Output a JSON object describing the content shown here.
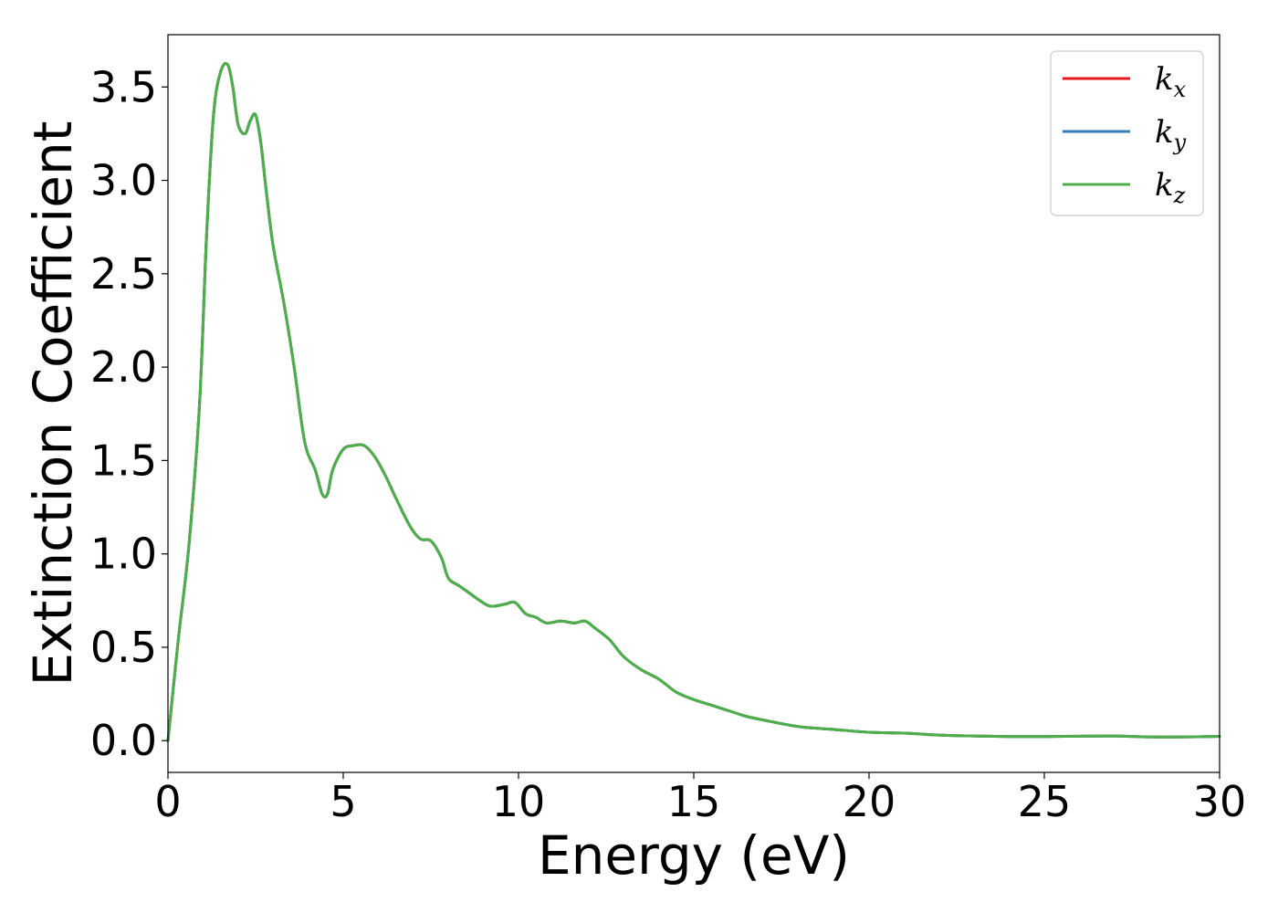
{
  "chart_data": {
    "type": "line",
    "title": "",
    "xlabel": "Energy (eV)",
    "ylabel": "Extinction Coefficient",
    "xlim": [
      0,
      30
    ],
    "ylim": [
      -0.17,
      3.78
    ],
    "x_ticks": [
      0,
      5,
      10,
      15,
      20,
      25,
      30
    ],
    "y_ticks": [
      0.0,
      0.5,
      1.0,
      1.5,
      2.0,
      2.5,
      3.0,
      3.5
    ],
    "x_tick_labels": [
      "0",
      "5",
      "10",
      "15",
      "20",
      "25",
      "30"
    ],
    "y_tick_labels": [
      "0.0",
      "0.5",
      "1.0",
      "1.5",
      "2.0",
      "2.5",
      "3.0",
      "3.5"
    ],
    "grid": false,
    "legend_position": "top-right",
    "legend": [
      {
        "symbol": "k",
        "subscript": "x",
        "color": "#e41a1c"
      },
      {
        "symbol": "k",
        "subscript": "y",
        "color": "#377eb8"
      },
      {
        "symbol": "k",
        "subscript": "z",
        "color": "#4daf4a"
      }
    ],
    "x": [
      0,
      0.3,
      0.6,
      0.9,
      1.1,
      1.3,
      1.5,
      1.7,
      1.85,
      2.0,
      2.2,
      2.35,
      2.5,
      2.65,
      2.8,
      3.0,
      3.3,
      3.6,
      3.9,
      4.2,
      4.4,
      4.55,
      4.7,
      5.0,
      5.3,
      5.6,
      5.9,
      6.2,
      6.5,
      6.9,
      7.2,
      7.5,
      7.8,
      8.0,
      8.3,
      8.6,
      8.9,
      9.2,
      9.6,
      9.9,
      10.2,
      10.5,
      10.8,
      11.2,
      11.6,
      11.9,
      12.2,
      12.6,
      13.0,
      13.5,
      14.0,
      14.5,
      15.0,
      15.5,
      16.0,
      16.5,
      17.0,
      18.0,
      19.0,
      20.0,
      21.0,
      22.0,
      23.0,
      24.0,
      25.0,
      26.0,
      27.0,
      28.0,
      29.0,
      30.0
    ],
    "series": [
      {
        "name": "k_x",
        "color": "#e41a1c",
        "values": [
          0.0,
          0.55,
          1.05,
          1.8,
          2.7,
          3.35,
          3.58,
          3.62,
          3.5,
          3.3,
          3.25,
          3.32,
          3.35,
          3.2,
          2.95,
          2.65,
          2.35,
          2.0,
          1.6,
          1.45,
          1.32,
          1.32,
          1.45,
          1.56,
          1.58,
          1.58,
          1.52,
          1.42,
          1.3,
          1.15,
          1.08,
          1.07,
          0.98,
          0.87,
          0.83,
          0.79,
          0.75,
          0.72,
          0.73,
          0.74,
          0.68,
          0.66,
          0.63,
          0.64,
          0.63,
          0.64,
          0.6,
          0.54,
          0.45,
          0.38,
          0.33,
          0.26,
          0.22,
          0.19,
          0.16,
          0.13,
          0.11,
          0.075,
          0.06,
          0.045,
          0.04,
          0.03,
          0.025,
          0.022,
          0.022,
          0.024,
          0.025,
          0.02,
          0.02,
          0.023
        ]
      },
      {
        "name": "k_y",
        "color": "#377eb8",
        "values": [
          0.0,
          0.55,
          1.05,
          1.8,
          2.7,
          3.35,
          3.58,
          3.62,
          3.5,
          3.3,
          3.25,
          3.32,
          3.35,
          3.2,
          2.95,
          2.65,
          2.35,
          2.0,
          1.6,
          1.45,
          1.32,
          1.32,
          1.45,
          1.56,
          1.58,
          1.58,
          1.52,
          1.42,
          1.3,
          1.15,
          1.08,
          1.07,
          0.98,
          0.87,
          0.83,
          0.79,
          0.75,
          0.72,
          0.73,
          0.74,
          0.68,
          0.66,
          0.63,
          0.64,
          0.63,
          0.64,
          0.6,
          0.54,
          0.45,
          0.38,
          0.33,
          0.26,
          0.22,
          0.19,
          0.16,
          0.13,
          0.11,
          0.075,
          0.06,
          0.045,
          0.04,
          0.03,
          0.025,
          0.022,
          0.022,
          0.024,
          0.025,
          0.02,
          0.02,
          0.023
        ]
      },
      {
        "name": "k_z",
        "color": "#4daf4a",
        "values": [
          0.0,
          0.55,
          1.05,
          1.8,
          2.7,
          3.35,
          3.58,
          3.62,
          3.5,
          3.3,
          3.25,
          3.32,
          3.35,
          3.2,
          2.95,
          2.65,
          2.35,
          2.0,
          1.6,
          1.45,
          1.32,
          1.32,
          1.45,
          1.56,
          1.58,
          1.58,
          1.52,
          1.42,
          1.3,
          1.15,
          1.08,
          1.07,
          0.98,
          0.87,
          0.83,
          0.79,
          0.75,
          0.72,
          0.73,
          0.74,
          0.68,
          0.66,
          0.63,
          0.64,
          0.63,
          0.64,
          0.6,
          0.54,
          0.45,
          0.38,
          0.33,
          0.26,
          0.22,
          0.19,
          0.16,
          0.13,
          0.11,
          0.075,
          0.06,
          0.045,
          0.04,
          0.03,
          0.025,
          0.022,
          0.022,
          0.024,
          0.025,
          0.02,
          0.02,
          0.023
        ]
      }
    ]
  }
}
